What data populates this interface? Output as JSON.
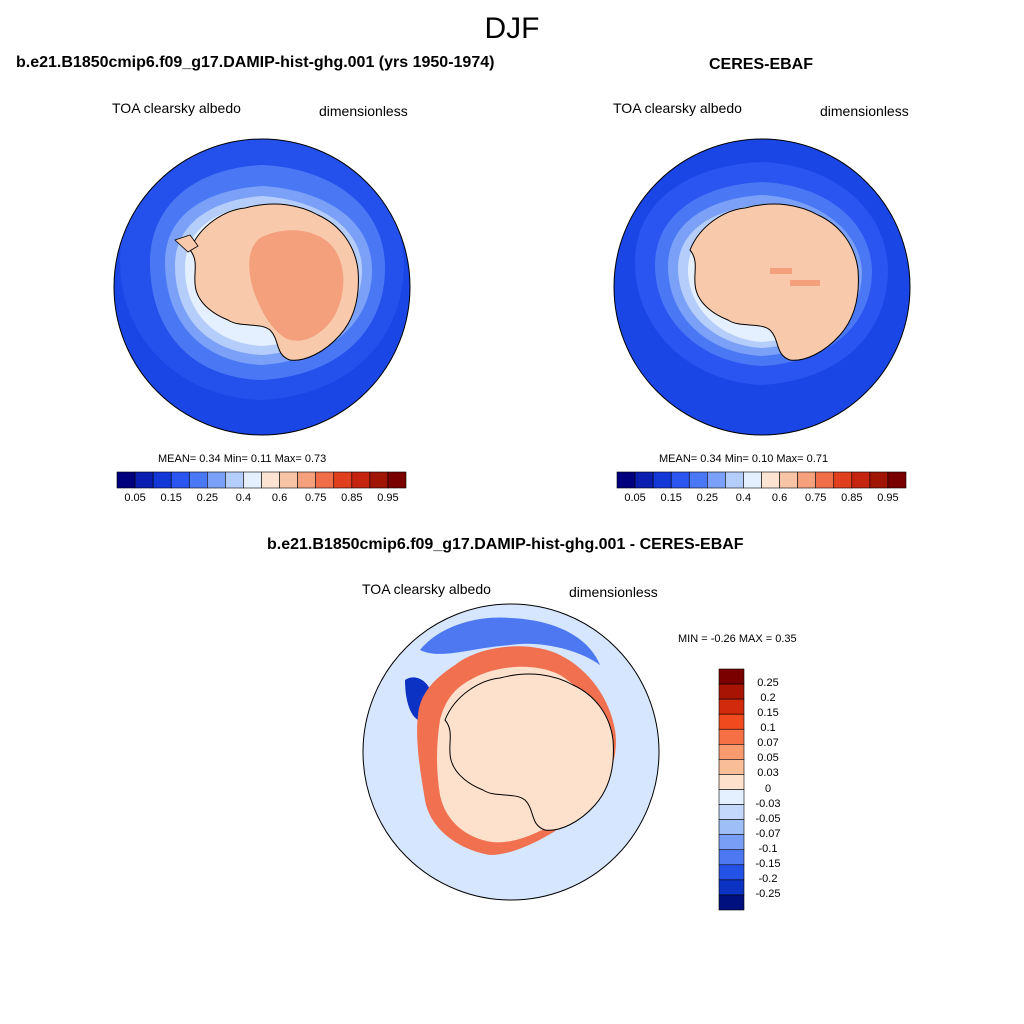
{
  "season": "DJF",
  "panels": [
    {
      "id": "model",
      "title": "b.e21.B1850cmip6.f09_g17.DAMIP-hist-ghg.001 (yrs 1950-1974)",
      "variable": "TOA clearsky albedo",
      "units": "dimensionless",
      "stats": "MEAN=   0.34  Min=    0.11  Max=    0.73"
    },
    {
      "id": "obs",
      "title": "CERES-EBAF",
      "variable": "TOA clearsky albedo",
      "units": "dimensionless",
      "stats": "MEAN=   0.34  Min=    0.10  Max=    0.71"
    },
    {
      "id": "diff",
      "title": "b.e21.B1850cmip6.f09_g17.DAMIP-hist-ghg.001 - CERES-EBAF",
      "variable": "TOA clearsky albedo",
      "units": "dimensionless",
      "stats": "MIN =  -0.26 MAX =   0.35"
    }
  ],
  "abs_colorbar": {
    "colors": [
      "#00007f",
      "#0a1fb0",
      "#1437d8",
      "#2a55f0",
      "#4a78f5",
      "#7aa0f7",
      "#b5cdfa",
      "#e4efff",
      "#fde3d2",
      "#f7c4a6",
      "#f4a07c",
      "#f06d4a",
      "#e0401e",
      "#c42410",
      "#a01505",
      "#7a0000"
    ],
    "tick_labels": [
      "0.05",
      "0.15",
      "0.25",
      "0.4",
      "0.6",
      "0.75",
      "0.85",
      "0.95"
    ]
  },
  "diff_colorbar": {
    "colors": [
      "#7a0000",
      "#a81404",
      "#d22a0c",
      "#f04a1e",
      "#f57045",
      "#f79a6d",
      "#f9bd98",
      "#fde1cc",
      "#e4efff",
      "#c4d8fb",
      "#9ebef8",
      "#789ff5",
      "#4d78f2",
      "#2552e6",
      "#0c32c4",
      "#00107e"
    ],
    "tick_labels": [
      "0.25",
      "0.2",
      "0.15",
      "0.1",
      "0.07",
      "0.05",
      "0.03",
      "0",
      "-0.03",
      "-0.05",
      "-0.07",
      "-0.1",
      "-0.15",
      "-0.2",
      "-0.25"
    ]
  }
}
